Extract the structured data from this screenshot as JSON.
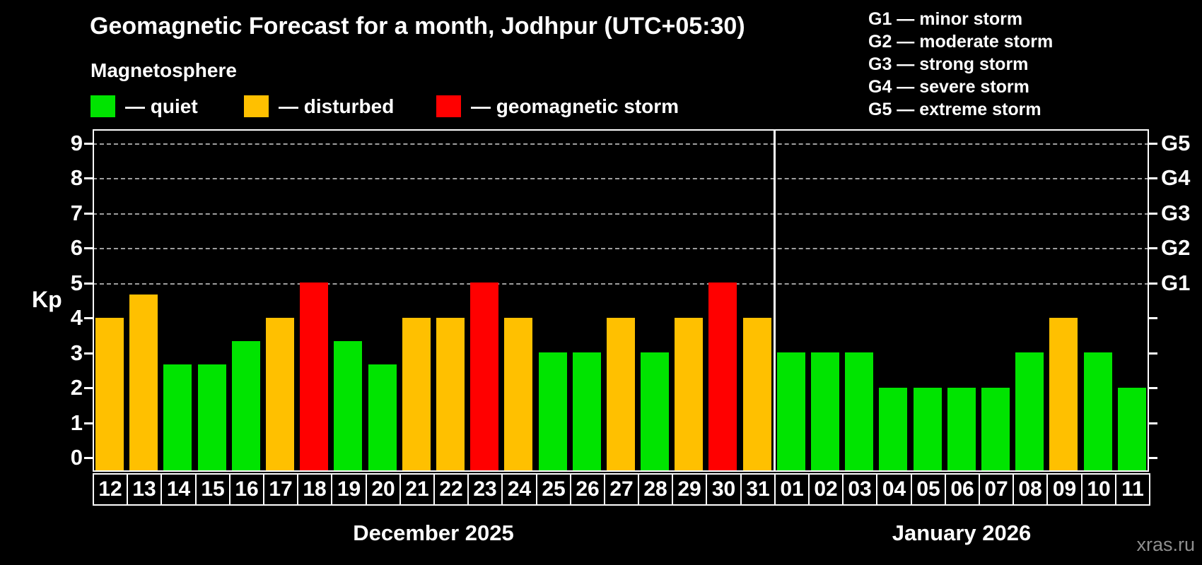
{
  "header": {
    "title": "Geomagnetic Forecast for a month, Jodhpur (UTC+05:30)",
    "subtitle": "Magnetosphere"
  },
  "legend": {
    "items": [
      {
        "status": "quiet",
        "label": "— quiet",
        "color": "#00E400"
      },
      {
        "status": "disturbed",
        "label": "— disturbed",
        "color": "#FFC000"
      },
      {
        "status": "storm",
        "label": "— geomagnetic storm",
        "color": "#FF0000"
      }
    ]
  },
  "g_legend": {
    "lines": [
      "G1 — minor storm",
      "G2 — moderate storm",
      "G3 — strong storm",
      "G4 — severe storm",
      "G5 — extreme storm"
    ]
  },
  "watermark": "xras.ru",
  "chart_data": {
    "type": "bar",
    "title": "Geomagnetic Forecast for a month, Jodhpur (UTC+05:30)",
    "ylabel": "Kp",
    "ylim": [
      0,
      9
    ],
    "yticks": [
      0,
      1,
      2,
      3,
      4,
      5,
      6,
      7,
      8,
      9
    ],
    "gridlines_at": [
      5,
      6,
      7,
      8,
      9
    ],
    "grid": "dashed-horizontal",
    "legend_position": "top-left",
    "right_axis": [
      {
        "label": "G5",
        "kp": 9
      },
      {
        "label": "G4",
        "kp": 8
      },
      {
        "label": "G3",
        "kp": 7
      },
      {
        "label": "G2",
        "kp": 6
      },
      {
        "label": "G1",
        "kp": 5
      }
    ],
    "status_colors": {
      "quiet": "#00E400",
      "disturbed": "#FFC000",
      "storm": "#FF0000"
    },
    "series": [
      {
        "label": "December 2025",
        "days": [
          "12",
          "13",
          "14",
          "15",
          "16",
          "17",
          "18",
          "19",
          "20",
          "21",
          "22",
          "23",
          "24",
          "25",
          "26",
          "27",
          "28",
          "29",
          "30",
          "31"
        ],
        "values": [
          4,
          4.67,
          2.67,
          2.67,
          3.33,
          4,
          5,
          3.33,
          2.67,
          4,
          4,
          5,
          4,
          3,
          3,
          4,
          3,
          4,
          5,
          4
        ],
        "status": [
          "disturbed",
          "disturbed",
          "quiet",
          "quiet",
          "quiet",
          "disturbed",
          "storm",
          "quiet",
          "quiet",
          "disturbed",
          "disturbed",
          "storm",
          "disturbed",
          "quiet",
          "quiet",
          "disturbed",
          "quiet",
          "disturbed",
          "storm",
          "disturbed"
        ]
      },
      {
        "label": "January 2026",
        "days": [
          "01",
          "02",
          "03",
          "04",
          "05",
          "06",
          "07",
          "08",
          "09",
          "10",
          "11"
        ],
        "values": [
          3,
          3,
          3,
          2,
          2,
          2,
          2,
          3,
          4,
          3,
          2
        ],
        "status": [
          "quiet",
          "quiet",
          "quiet",
          "quiet",
          "quiet",
          "quiet",
          "quiet",
          "quiet",
          "disturbed",
          "quiet",
          "quiet"
        ]
      }
    ]
  }
}
